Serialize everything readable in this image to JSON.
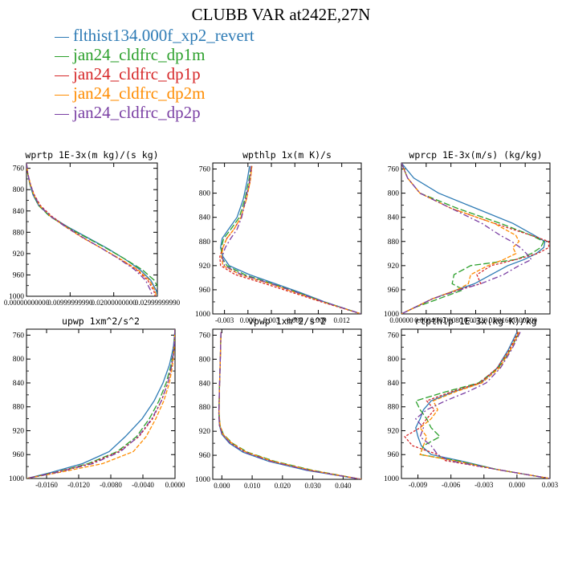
{
  "title": "CLUBB VAR at242E,27N",
  "legend": [
    {
      "name": "flthist134.000f_xp2_revert",
      "color": "#2e7bb5"
    },
    {
      "name": "jan24_cldfrc_dp1m",
      "color": "#2ca02c"
    },
    {
      "name": "jan24_cldfrc_dp1p",
      "color": "#d62728"
    },
    {
      "name": "jan24_cldfrc_dp2m",
      "color": "#ff8c00"
    },
    {
      "name": "jan24_cldfrc_dp2p",
      "color": "#7a3fa3"
    }
  ],
  "chart_data": [
    {
      "type": "line",
      "title": "wprtp  1E-3x(m kg)/(s kg)",
      "xlim": [
        0,
        0.03
      ],
      "ylim": [
        1000,
        750
      ],
      "xticks": [
        0,
        0.01,
        0.02,
        0.03
      ],
      "xtick_labels": [
        "0.00000000000",
        "0.00999999990",
        "0.02000000000",
        "0.02999999990"
      ],
      "yticks": [
        760,
        800,
        840,
        880,
        920,
        960,
        1000
      ],
      "y": [
        750,
        770,
        790,
        810,
        830,
        850,
        870,
        890,
        910,
        930,
        950,
        970,
        990,
        1000
      ],
      "series": [
        {
          "name": "flthist134.000f_xp2_revert",
          "x": [
            0,
            0.0003,
            0.0008,
            0.0015,
            0.0028,
            0.0055,
            0.0095,
            0.014,
            0.0185,
            0.0225,
            0.026,
            0.0285,
            0.0298,
            0.0301
          ]
        },
        {
          "name": "jan24_cldfrc_dp1m",
          "x": [
            0,
            0.0003,
            0.0008,
            0.0016,
            0.0028,
            0.0053,
            0.0093,
            0.0138,
            0.0183,
            0.0225,
            0.0265,
            0.0293,
            0.0305,
            0.031
          ]
        },
        {
          "name": "jan24_cldfrc_dp1p",
          "x": [
            0,
            0.0003,
            0.0009,
            0.0018,
            0.0032,
            0.0058,
            0.0092,
            0.013,
            0.0172,
            0.0213,
            0.0252,
            0.0278,
            0.0292,
            0.0295
          ]
        },
        {
          "name": "jan24_cldfrc_dp2m",
          "x": [
            0,
            0.0003,
            0.0009,
            0.0017,
            0.003,
            0.0055,
            0.009,
            0.0128,
            0.0172,
            0.0215,
            0.0255,
            0.0282,
            0.0295,
            0.0298
          ]
        },
        {
          "name": "jan24_cldfrc_dp2p",
          "x": [
            0,
            0.0003,
            0.0009,
            0.0017,
            0.003,
            0.0055,
            0.009,
            0.013,
            0.0172,
            0.0212,
            0.0248,
            0.0273,
            0.0285,
            0.0288
          ]
        }
      ]
    },
    {
      "type": "line",
      "title": "wpthlp  1x(m K)/s",
      "xlim": [
        -0.0045,
        0.0145
      ],
      "ylim": [
        1000,
        750
      ],
      "xticks": [
        -0.003,
        0,
        0.003,
        0.006,
        0.009,
        0.012
      ],
      "xtick_labels": [
        "-0.003",
        "0.000",
        "0.003",
        "0.006",
        "0.009",
        "0.012"
      ],
      "yticks": [
        760,
        800,
        840,
        880,
        920,
        960,
        1000
      ],
      "y": [
        755,
        780,
        810,
        840,
        860,
        875,
        890,
        905,
        920,
        935,
        950,
        965,
        980,
        1000
      ],
      "series": [
        {
          "name": "flthist134.000f_xp2_revert",
          "x": [
            0.0002,
            -0.0001,
            -0.0006,
            -0.0014,
            -0.0025,
            -0.0033,
            -0.0035,
            -0.0032,
            -0.0024,
            0.0002,
            0.0035,
            0.0068,
            0.0098,
            0.0145
          ]
        },
        {
          "name": "jan24_cldfrc_dp1m",
          "x": [
            0.0004,
            0.0001,
            -0.0004,
            -0.0011,
            -0.0022,
            -0.0031,
            -0.0034,
            -0.0034,
            -0.0027,
            -0.0004,
            0.0031,
            0.0065,
            0.0097,
            0.0145
          ]
        },
        {
          "name": "jan24_cldfrc_dp1p",
          "x": [
            0.0005,
            0.0003,
            -0.0002,
            -0.0009,
            -0.0018,
            -0.0027,
            -0.0032,
            -0.0036,
            -0.0035,
            -0.0016,
            0.0022,
            0.0058,
            0.0094,
            0.0145
          ]
        },
        {
          "name": "jan24_cldfrc_dp2m",
          "x": [
            0.0005,
            0.0003,
            -0.0002,
            -0.0009,
            -0.0018,
            -0.0027,
            -0.0032,
            -0.0034,
            -0.0032,
            -0.001,
            0.0028,
            0.0062,
            0.0096,
            0.0145
          ]
        },
        {
          "name": "jan24_cldfrc_dp2p",
          "x": [
            0.0004,
            0.0002,
            -0.0003,
            -0.0008,
            -0.0014,
            -0.0022,
            -0.0029,
            -0.0033,
            -0.003,
            -0.0008,
            0.003,
            0.0064,
            0.0097,
            0.0145
          ]
        }
      ]
    },
    {
      "type": "line",
      "title": "wprcp  1E-3x(m/s) (kg/kg)",
      "xlim": [
        0,
        0.0024
      ],
      "ylim": [
        1000,
        750
      ],
      "xticks": [
        0,
        0.0004,
        0.0008,
        0.0012,
        0.0016,
        0.002
      ],
      "xtick_labels": [
        "0.00000",
        "0.00040",
        "0.00080",
        "0.00120",
        "0.00160",
        "0.00200"
      ],
      "yticks": [
        760,
        800,
        840,
        880,
        920,
        960,
        1000
      ],
      "y": [
        750,
        775,
        800,
        825,
        850,
        870,
        880,
        890,
        900,
        910,
        920,
        935,
        950,
        960,
        975,
        990,
        1000
      ],
      "series": [
        {
          "name": "flthist134.000f_xp2_revert",
          "x": [
            0,
            0.0002,
            0.0006,
            0.0012,
            0.0018,
            0.00215,
            0.00232,
            0.0023,
            0.00218,
            0.00198,
            0.00172,
            0.00145,
            0.00118,
            0.0009,
            0.0005,
            0.0002,
            0
          ]
        },
        {
          "name": "jan24_cldfrc_dp1m",
          "x": [
            0,
            0.0001,
            0.0003,
            0.0009,
            0.0016,
            0.0021,
            0.0023,
            0.00225,
            0.0021,
            0.00185,
            0.00112,
            0.00085,
            0.00082,
            0.001,
            0.0006,
            0.0002,
            0
          ]
        },
        {
          "name": "jan24_cldfrc_dp1p",
          "x": [
            0,
            0.0001,
            0.0003,
            0.0008,
            0.0015,
            0.0021,
            0.00238,
            0.00238,
            0.0022,
            0.00185,
            0.00145,
            0.00122,
            0.00128,
            0.00092,
            0.0005,
            0.0002,
            0
          ]
        },
        {
          "name": "jan24_cldfrc_dp2m",
          "x": [
            0,
            0.0001,
            0.0003,
            0.0008,
            0.0015,
            0.00185,
            0.0019,
            0.0018,
            0.00185,
            0.00165,
            0.0014,
            0.00112,
            0.00108,
            0.0009,
            0.0005,
            0.0002,
            0
          ]
        },
        {
          "name": "jan24_cldfrc_dp2p",
          "x": [
            0,
            0.0001,
            0.0003,
            0.0008,
            0.0013,
            0.0016,
            0.00178,
            0.00192,
            0.00202,
            0.0021,
            0.0019,
            0.00165,
            0.00128,
            0.00095,
            0.0005,
            0.0002,
            0
          ]
        }
      ]
    },
    {
      "type": "line",
      "title": "upwp  1xm^2/s^2",
      "xlim": [
        -0.0185,
        0
      ],
      "ylim": [
        1000,
        750
      ],
      "xticks": [
        -0.016,
        -0.012,
        -0.008,
        -0.004,
        0
      ],
      "xtick_labels": [
        "-0.0160",
        "-0.0120",
        "-0.0080",
        "-0.0040",
        "0.0000"
      ],
      "yticks": [
        760,
        800,
        840,
        880,
        920,
        960,
        1000
      ],
      "y": [
        750,
        780,
        810,
        840,
        870,
        900,
        930,
        955,
        975,
        990,
        1000
      ],
      "series": [
        {
          "name": "flthist134.000f_xp2_revert",
          "x": [
            0,
            -0.0002,
            -0.0007,
            -0.0015,
            -0.0026,
            -0.0041,
            -0.0062,
            -0.0082,
            -0.0115,
            -0.0155,
            -0.0185
          ]
        },
        {
          "name": "jan24_cldfrc_dp1m",
          "x": [
            0,
            -0.0001,
            -0.0005,
            -0.0011,
            -0.002,
            -0.0032,
            -0.0048,
            -0.0072,
            -0.0108,
            -0.015,
            -0.0185
          ]
        },
        {
          "name": "jan24_cldfrc_dp1p",
          "x": [
            0,
            -0.0001,
            -0.0004,
            -0.0009,
            -0.0017,
            -0.0028,
            -0.0045,
            -0.007,
            -0.0105,
            -0.015,
            -0.0185
          ]
        },
        {
          "name": "jan24_cldfrc_dp2m",
          "x": [
            0,
            -0.0001,
            -0.0003,
            -0.0007,
            -0.0014,
            -0.0024,
            -0.0036,
            -0.0052,
            -0.009,
            -0.0145,
            -0.0185
          ]
        },
        {
          "name": "jan24_cldfrc_dp2p",
          "x": [
            0,
            -0.0001,
            -0.0004,
            -0.0009,
            -0.0017,
            -0.0029,
            -0.0046,
            -0.0068,
            -0.0102,
            -0.0148,
            -0.0185
          ]
        }
      ]
    },
    {
      "type": "line",
      "title": "vpwp  1xm^2/s^2",
      "xlim": [
        -0.003,
        0.046
      ],
      "ylim": [
        1000,
        750
      ],
      "xticks": [
        0,
        0.01,
        0.02,
        0.03,
        0.04
      ],
      "xtick_labels": [
        "0.000",
        "0.010",
        "0.020",
        "0.030",
        "0.040"
      ],
      "yticks": [
        760,
        800,
        840,
        880,
        920,
        960,
        1000
      ],
      "y": [
        755,
        800,
        850,
        890,
        910,
        925,
        940,
        955,
        970,
        985,
        1000
      ],
      "series": [
        {
          "name": "flthist134.000f_xp2_revert",
          "x": [
            -0.0003,
            -0.0005,
            -0.0008,
            -0.001,
            -0.0008,
            0,
            0.0025,
            0.007,
            0.0155,
            0.028,
            0.046
          ]
        },
        {
          "name": "jan24_cldfrc_dp1m",
          "x": [
            -0.0003,
            -0.0005,
            -0.0008,
            -0.0009,
            -0.0006,
            0.0005,
            0.0035,
            0.0085,
            0.0175,
            0.03,
            0.046
          ]
        },
        {
          "name": "jan24_cldfrc_dp1p",
          "x": [
            -0.0003,
            -0.0005,
            -0.0008,
            -0.001,
            -0.0008,
            0.0002,
            0.003,
            0.0078,
            0.0165,
            0.029,
            0.046
          ]
        },
        {
          "name": "jan24_cldfrc_dp2m",
          "x": [
            -0.0003,
            -0.0005,
            -0.0008,
            -0.0009,
            -0.0006,
            0.0004,
            0.0033,
            0.0082,
            0.017,
            0.0295,
            0.046
          ]
        },
        {
          "name": "jan24_cldfrc_dp2p",
          "x": [
            -0.0003,
            -0.0005,
            -0.0008,
            -0.001,
            -0.0008,
            0.0001,
            0.0028,
            0.0075,
            0.016,
            0.0285,
            0.046
          ]
        }
      ]
    },
    {
      "type": "line",
      "title": "rtpthlp  1E-3x(kg K)/kg",
      "xlim": [
        -0.0105,
        0.003
      ],
      "ylim": [
        1000,
        750
      ],
      "xticks": [
        -0.009,
        -0.006,
        -0.003,
        0,
        0.003
      ],
      "xtick_labels": [
        "-0.009",
        "-0.006",
        "-0.003",
        "0.000",
        "0.003"
      ],
      "yticks": [
        760,
        800,
        840,
        880,
        920,
        960,
        1000
      ],
      "y": [
        755,
        785,
        815,
        840,
        855,
        870,
        885,
        900,
        915,
        930,
        945,
        960,
        970,
        985,
        1000
      ],
      "series": [
        {
          "name": "flthist134.000f_xp2_revert",
          "x": [
            0,
            -0.0008,
            -0.0018,
            -0.0033,
            -0.0058,
            -0.0078,
            -0.0085,
            -0.0088,
            -0.0092,
            -0.009,
            -0.0087,
            -0.0078,
            -0.0052,
            -0.0018,
            0.003
          ]
        },
        {
          "name": "jan24_cldfrc_dp1m",
          "x": [
            0.0002,
            -0.0006,
            -0.0017,
            -0.0035,
            -0.0065,
            -0.0092,
            -0.0088,
            -0.0082,
            -0.0078,
            -0.007,
            -0.0085,
            -0.0088,
            -0.0055,
            -0.0018,
            0.003
          ]
        },
        {
          "name": "jan24_cldfrc_dp1p",
          "x": [
            0.0001,
            -0.0007,
            -0.0018,
            -0.0034,
            -0.006,
            -0.0082,
            -0.0075,
            -0.0082,
            -0.0088,
            -0.0102,
            -0.0095,
            -0.0072,
            -0.0065,
            -0.0018,
            0.003
          ]
        },
        {
          "name": "jan24_cldfrc_dp2m",
          "x": [
            0.0002,
            -0.0006,
            -0.0016,
            -0.0032,
            -0.0056,
            -0.0076,
            -0.0072,
            -0.0078,
            -0.0088,
            -0.0082,
            -0.0085,
            -0.0088,
            -0.0058,
            -0.0018,
            0.003
          ]
        },
        {
          "name": "jan24_cldfrc_dp2p",
          "x": [
            0.0003,
            -0.0005,
            -0.0015,
            -0.0028,
            -0.0045,
            -0.0065,
            -0.0082,
            -0.0092,
            -0.0085,
            -0.0088,
            -0.0078,
            -0.0072,
            -0.0062,
            -0.0018,
            0.003
          ]
        }
      ]
    }
  ]
}
